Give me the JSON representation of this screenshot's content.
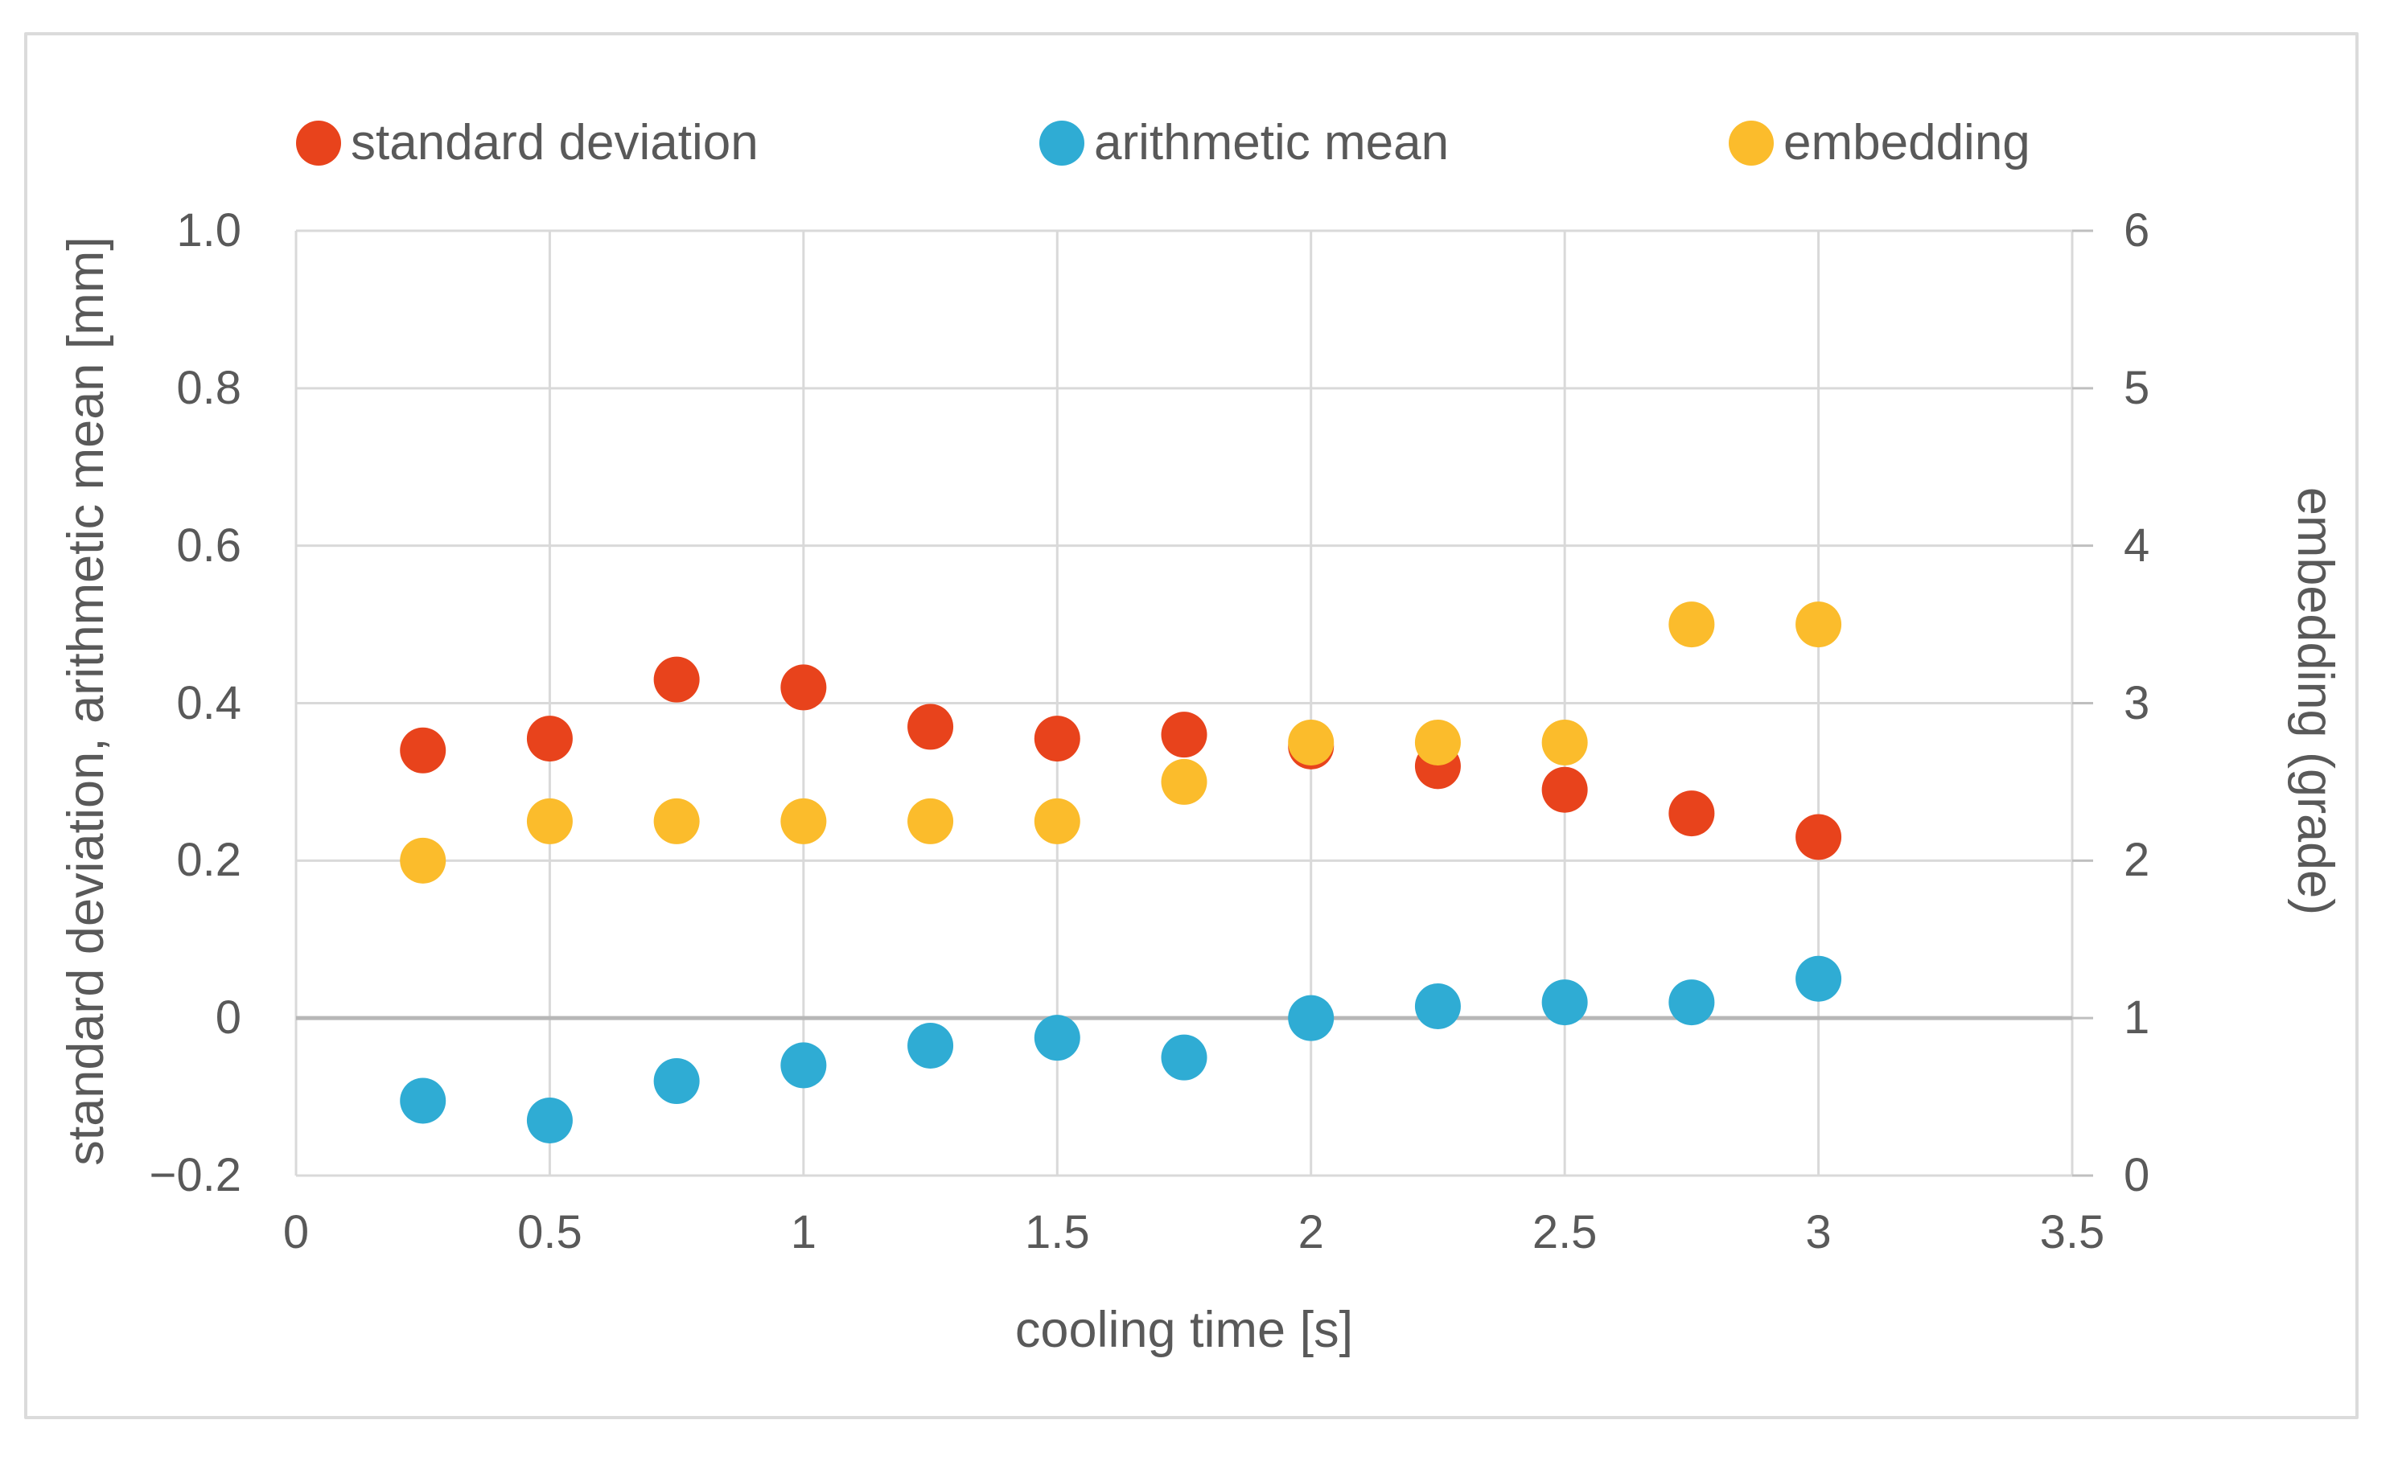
{
  "colors": {
    "grid": "#D9D9D9",
    "zero_line": "#B7B7B7",
    "axis_tick": "#BFBFBF",
    "text": "#595959",
    "frame_border": "#DBDBDB",
    "background": "#FFFFFF"
  },
  "chart_data": {
    "type": "scatter",
    "x_values": [
      0.25,
      0.5,
      0.75,
      1.0,
      1.25,
      1.5,
      1.75,
      2.0,
      2.25,
      2.5,
      2.75,
      3.0
    ],
    "series": [
      {
        "name": "standard deviation",
        "axis": "left",
        "color": "#E8431C",
        "values": [
          0.34,
          0.355,
          0.43,
          0.42,
          0.37,
          0.355,
          0.36,
          0.345,
          0.32,
          0.29,
          0.26,
          0.23
        ]
      },
      {
        "name": "arithmetic mean",
        "axis": "left",
        "color": "#2FACD4",
        "values": [
          -0.105,
          -0.13,
          -0.08,
          -0.06,
          -0.035,
          -0.025,
          -0.05,
          0.0,
          0.015,
          0.02,
          0.02,
          0.05
        ]
      },
      {
        "name": "embedding",
        "axis": "right",
        "color": "#FBBC2C",
        "values": [
          2,
          2.25,
          2.25,
          2.25,
          2.25,
          2.25,
          2.5,
          2.75,
          2.75,
          2.75,
          3.5,
          3.5
        ]
      }
    ],
    "x_axis": {
      "title": "cooling time [s]",
      "min": 0,
      "max": 3.5,
      "ticks": [
        0,
        0.5,
        1,
        1.5,
        2,
        2.5,
        3,
        3.5
      ],
      "tick_labels": [
        "0",
        "0.5",
        "1",
        "1.5",
        "2",
        "2.5",
        "3",
        "3.5"
      ]
    },
    "left_axis": {
      "title": "standard deviation, arithmetic mean [mm]",
      "min": -0.2,
      "max": 1.0,
      "ticks": [
        1.0,
        0.8,
        0.6,
        0.4,
        0.2,
        0,
        -0.2
      ],
      "tick_labels": [
        "1.0",
        "0.8",
        "0.6",
        "0.4",
        "0.2",
        "0",
        "−0.2"
      ]
    },
    "right_axis": {
      "title": "embedding (grade)",
      "min": 0,
      "max": 6,
      "ticks": [
        6,
        5,
        4,
        3,
        2,
        1,
        0
      ],
      "tick_labels": [
        "6",
        "5",
        "4",
        "3",
        "2",
        "1",
        "0"
      ]
    },
    "grid": true,
    "legend_position": "top"
  }
}
